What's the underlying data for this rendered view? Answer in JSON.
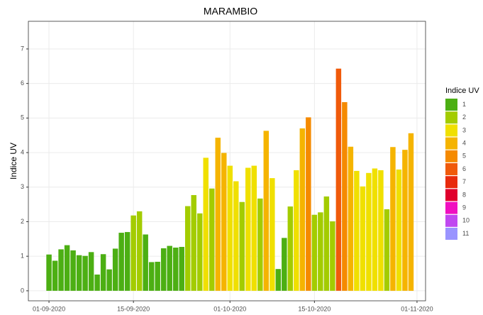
{
  "chart_data": {
    "type": "bar",
    "title": "MARAMBIO",
    "y_label": "Indice UV",
    "x": [
      "2020-09-01",
      "2020-09-02",
      "2020-09-03",
      "2020-09-04",
      "2020-09-05",
      "2020-09-06",
      "2020-09-07",
      "2020-09-08",
      "2020-09-09",
      "2020-09-10",
      "2020-09-11",
      "2020-09-12",
      "2020-09-13",
      "2020-09-14",
      "2020-09-15",
      "2020-09-16",
      "2020-09-17",
      "2020-09-18",
      "2020-09-19",
      "2020-09-20",
      "2020-09-21",
      "2020-09-22",
      "2020-09-23",
      "2020-09-24",
      "2020-09-25",
      "2020-09-26",
      "2020-09-27",
      "2020-09-28",
      "2020-09-29",
      "2020-09-30",
      "2020-10-01",
      "2020-10-02",
      "2020-10-03",
      "2020-10-04",
      "2020-10-05",
      "2020-10-06",
      "2020-10-07",
      "2020-10-08",
      "2020-10-09",
      "2020-10-10",
      "2020-10-11",
      "2020-10-12",
      "2020-10-13",
      "2020-10-14",
      "2020-10-15",
      "2020-10-16",
      "2020-10-17",
      "2020-10-18",
      "2020-10-19",
      "2020-10-20",
      "2020-10-21",
      "2020-10-22",
      "2020-10-23",
      "2020-10-24",
      "2020-10-25",
      "2020-10-26",
      "2020-10-27",
      "2020-10-28",
      "2020-10-29",
      "2020-10-30",
      "2020-10-31"
    ],
    "values": [
      1.05,
      0.87,
      1.2,
      1.32,
      1.17,
      1.03,
      1.01,
      1.12,
      0.47,
      1.06,
      0.62,
      1.22,
      1.68,
      1.7,
      2.18,
      2.3,
      1.63,
      0.83,
      0.84,
      1.23,
      1.3,
      1.25,
      1.27,
      2.45,
      2.77,
      2.24,
      3.85,
      2.96,
      4.43,
      3.99,
      3.62,
      3.17,
      2.57,
      3.56,
      3.62,
      2.67,
      4.63,
      3.26,
      0.63,
      1.53,
      2.44,
      3.49,
      4.7,
      5.02,
      2.2,
      2.27,
      2.73,
      2.01,
      6.43,
      5.46,
      4.17,
      3.47,
      3.02,
      3.41,
      3.54,
      3.49,
      2.36,
      4.16,
      3.51,
      4.08,
      4.56
    ],
    "colors": [
      "#4caf13",
      "#4caf13",
      "#4caf13",
      "#4caf13",
      "#4caf13",
      "#4caf13",
      "#4caf13",
      "#4caf13",
      "#4caf13",
      "#4caf13",
      "#4caf13",
      "#4caf13",
      "#4caf13",
      "#4caf13",
      "#a3cc00",
      "#a3cc00",
      "#4caf13",
      "#4caf13",
      "#4caf13",
      "#4caf13",
      "#4caf13",
      "#4caf13",
      "#4caf13",
      "#a3cc00",
      "#a3cc00",
      "#a3cc00",
      "#f0e000",
      "#a3cc00",
      "#f5b400",
      "#f5b400",
      "#f0e000",
      "#f0e000",
      "#a3cc00",
      "#f0e000",
      "#f0e000",
      "#a3cc00",
      "#f5b400",
      "#f0e000",
      "#4caf13",
      "#4caf13",
      "#a3cc00",
      "#f0e000",
      "#f5b400",
      "#f58a00",
      "#a3cc00",
      "#a3cc00",
      "#a3cc00",
      "#a3cc00",
      "#f05a0a",
      "#f58a00",
      "#f5b400",
      "#f0e000",
      "#f0e000",
      "#f0e000",
      "#f0e000",
      "#f0e000",
      "#a3cc00",
      "#f5b400",
      "#f0e000",
      "#f5b400",
      "#f5b400"
    ],
    "xlim": [
      "2020-08-28T14:00Z",
      "2020-11-02T10:00Z"
    ],
    "xticks": [
      {
        "value": "2020-09-01",
        "label": "01-09-2020"
      },
      {
        "value": "2020-09-15",
        "label": "15-09-2020"
      },
      {
        "value": "2020-10-01",
        "label": "01-10-2020"
      },
      {
        "value": "2020-10-15",
        "label": "15-10-2020"
      },
      {
        "value": "2020-11-01",
        "label": "01-11-2020"
      }
    ],
    "ylim": [
      -0.29,
      7.8
    ],
    "yticks": [
      0,
      1,
      2,
      3,
      4,
      5,
      6,
      7
    ],
    "grid": true,
    "legend": {
      "title": "Indice UV",
      "items": [
        {
          "label": 1,
          "color": "#4caf13"
        },
        {
          "label": 2,
          "color": "#a3cc00"
        },
        {
          "label": 3,
          "color": "#f0e000"
        },
        {
          "label": 4,
          "color": "#f5b400"
        },
        {
          "label": 5,
          "color": "#f58a00"
        },
        {
          "label": 6,
          "color": "#f05a0a"
        },
        {
          "label": 7,
          "color": "#e82a0c"
        },
        {
          "label": 8,
          "color": "#e0002c"
        },
        {
          "label": 9,
          "color": "#f010c0"
        },
        {
          "label": 10,
          "color": "#c048f0"
        },
        {
          "label": 11,
          "color": "#9a94ff"
        }
      ]
    }
  }
}
